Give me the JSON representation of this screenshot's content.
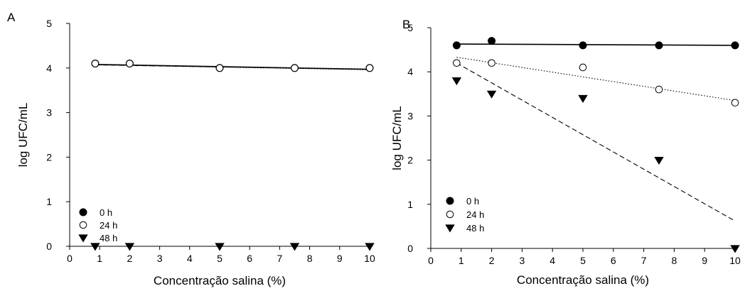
{
  "figure": {
    "background": "#ffffff",
    "ink": "#000000"
  },
  "chart_data": [
    {
      "panel_label": "A",
      "type": "scatter",
      "xlabel": "Concentração salina (%)",
      "ylabel": "log UFC/mL",
      "xlim": [
        0,
        10
      ],
      "ylim": [
        0,
        5
      ],
      "xticks": [
        "0",
        "1",
        "2",
        "3",
        "4",
        "5",
        "6",
        "7",
        "8",
        "9",
        "10"
      ],
      "yticks": [
        "0",
        "1",
        "2",
        "3",
        "4",
        "5"
      ],
      "grid": false,
      "legend_position": "bottom-left",
      "series": [
        {
          "name": "0 h",
          "marker": "filled-circle",
          "line": "solid",
          "x": [
            0.85,
            2,
            5,
            7.5,
            10
          ],
          "y": [
            4.1,
            4.1,
            4.0,
            4.0,
            4.0
          ],
          "fit": [
            4.08,
            3.97
          ]
        },
        {
          "name": "24 h",
          "marker": "open-circle",
          "line": "dotted",
          "x": [
            0.85,
            2,
            5,
            7.5,
            10
          ],
          "y": [
            4.1,
            4.1,
            4.0,
            4.0,
            4.0
          ],
          "fit": [
            4.07,
            3.96
          ]
        },
        {
          "name": "48 h",
          "marker": "filled-triangle-down",
          "line": "dashed",
          "x": [
            0.85,
            2,
            5,
            7.5,
            10
          ],
          "y": [
            0,
            0,
            0,
            0,
            0
          ],
          "fit": [
            4.07,
            3.97
          ]
        }
      ]
    },
    {
      "panel_label": "B",
      "type": "scatter",
      "xlabel": "Concentração salina (%)",
      "ylabel": "log UFC/mL",
      "xlim": [
        0,
        10
      ],
      "ylim": [
        0,
        5
      ],
      "xticks": [
        "0",
        "1",
        "2",
        "3",
        "4",
        "5",
        "6",
        "7",
        "8",
        "9",
        "10"
      ],
      "yticks": [
        "0",
        "1",
        "2",
        "3",
        "4",
        "5"
      ],
      "grid": false,
      "legend_position": "bottom-left",
      "series": [
        {
          "name": "0 h",
          "marker": "filled-circle",
          "line": "solid",
          "x": [
            0.85,
            2,
            5,
            7.5,
            10
          ],
          "y": [
            4.6,
            4.7,
            4.6,
            4.6,
            4.6
          ],
          "fit": [
            4.63,
            4.6
          ]
        },
        {
          "name": "24 h",
          "marker": "open-circle",
          "line": "dotted",
          "x": [
            0.85,
            2,
            5,
            7.5,
            10
          ],
          "y": [
            4.2,
            4.2,
            4.1,
            3.6,
            3.3
          ],
          "fit": [
            4.33,
            3.35
          ]
        },
        {
          "name": "48 h",
          "marker": "filled-triangle-down",
          "line": "dashed",
          "x": [
            0.85,
            2,
            5,
            7.5,
            10
          ],
          "y": [
            3.8,
            3.5,
            3.4,
            2.0,
            0
          ],
          "fit": [
            4.2,
            0.62
          ]
        }
      ]
    }
  ]
}
